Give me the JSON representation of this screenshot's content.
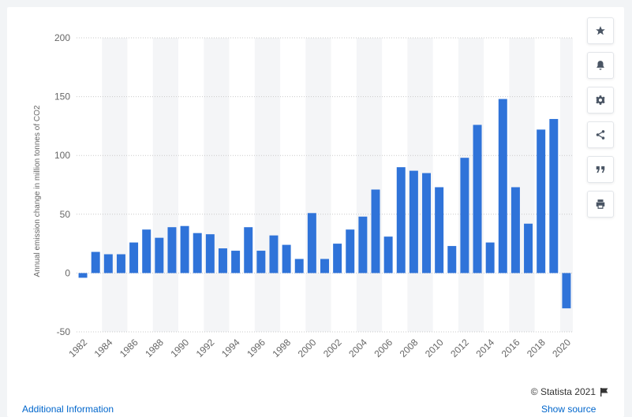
{
  "credit": "© Statista 2021",
  "footer": {
    "left": "Additional Information",
    "right": "Show source"
  },
  "toolbar": [
    {
      "icon": "star-icon",
      "name": "favorite-button"
    },
    {
      "icon": "bell-icon",
      "name": "notification-button"
    },
    {
      "icon": "gear-icon",
      "name": "settings-button"
    },
    {
      "icon": "share-icon",
      "name": "share-button"
    },
    {
      "icon": "quote-icon",
      "name": "cite-button"
    },
    {
      "icon": "print-icon",
      "name": "print-button"
    }
  ],
  "colors": {
    "bar": "#2f73d9",
    "band": "#f4f5f7",
    "grid": "#c9c9c9"
  },
  "chart_data": {
    "type": "bar",
    "title": "",
    "xlabel": "",
    "ylabel": "Annual emission change in million tonnes of CO2",
    "ylim": [
      -50,
      200
    ],
    "yticks": [
      -50,
      0,
      50,
      100,
      150,
      200
    ],
    "grid": true,
    "categories": [
      "1982",
      "1983",
      "1984",
      "1985",
      "1986",
      "1987",
      "1988",
      "1989",
      "1990",
      "1991",
      "1992",
      "1993",
      "1994",
      "1995",
      "1996",
      "1997",
      "1998",
      "1999",
      "2000",
      "2001",
      "2002",
      "2003",
      "2004",
      "2005",
      "2006",
      "2007",
      "2008",
      "2009",
      "2010",
      "2011",
      "2012",
      "2013",
      "2014",
      "2015",
      "2016",
      "2017",
      "2018",
      "2019",
      "2020"
    ],
    "xtick_labels": [
      "1982",
      "1984",
      "1986",
      "1988",
      "1990",
      "1992",
      "1994",
      "1996",
      "1998",
      "2000",
      "2002",
      "2004",
      "2006",
      "2008",
      "2010",
      "2012",
      "2014",
      "2016",
      "2018",
      "2020"
    ],
    "values": [
      -4,
      18,
      16,
      16,
      26,
      37,
      30,
      39,
      40,
      34,
      33,
      21,
      19,
      39,
      19,
      32,
      24,
      12,
      51,
      12,
      25,
      37,
      48,
      71,
      31,
      90,
      87,
      85,
      73,
      23,
      98,
      126,
      26,
      148,
      73,
      42,
      122,
      131,
      -30
    ]
  }
}
